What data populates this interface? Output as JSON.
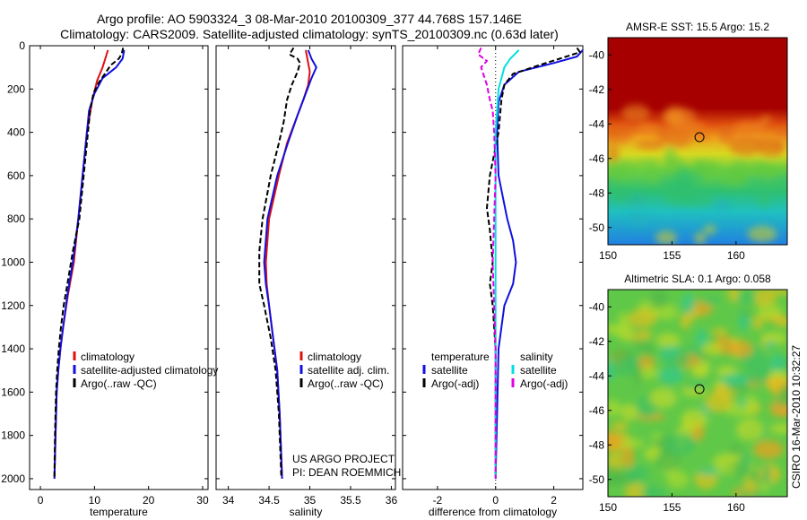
{
  "title_line1": "Argo profile: AO 5903324_3 08-Mar-2010 20100309_377 44.768S 157.146E",
  "title_line2": "Climatology: CARS2009. Satellite-adjusted climatology: synTS_20100309.nc (0.63d later)",
  "side_text": "CSIRO 16-Mar-2010 10:32:27",
  "colors": {
    "red": "#e01010",
    "blue": "#1010e0",
    "black": "#000000",
    "cyan": "#00e0e0",
    "magenta": "#e000e0"
  },
  "chart_data": [
    {
      "type": "line",
      "xlabel": "temperature",
      "xlim": [
        -2,
        31
      ],
      "ylim": [
        2050,
        0
      ],
      "y_reversed": true,
      "xticks": [
        0,
        10,
        20,
        30
      ],
      "yticks": [
        0,
        200,
        400,
        600,
        800,
        1000,
        1200,
        1400,
        1600,
        1800,
        2000
      ],
      "legend": [
        "climatology",
        "satellite-adjusted climatology",
        "Argo(..raw -QC)"
      ],
      "series": [
        {
          "name": "climatology",
          "color": "red",
          "dash": false,
          "points": [
            [
              12.5,
              20
            ],
            [
              12.0,
              60
            ],
            [
              11.5,
              100
            ],
            [
              10.5,
              160
            ],
            [
              9.6,
              250
            ],
            [
              8.6,
              400
            ],
            [
              7.8,
              600
            ],
            [
              7.0,
              800
            ],
            [
              6.2,
              1000
            ],
            [
              5.1,
              1150
            ],
            [
              4.2,
              1300
            ],
            [
              3.7,
              1400
            ],
            [
              3.3,
              1500
            ],
            [
              3.0,
              1600
            ],
            [
              2.8,
              1800
            ],
            [
              2.6,
              2000
            ]
          ]
        },
        {
          "name": "satellite-adjusted climatology",
          "color": "blue",
          "dash": false,
          "points": [
            [
              15.5,
              20
            ],
            [
              15.2,
              60
            ],
            [
              14.0,
              100
            ],
            [
              11.5,
              150
            ],
            [
              10.0,
              220
            ],
            [
              9.0,
              300
            ],
            [
              8.6,
              400
            ],
            [
              7.8,
              600
            ],
            [
              7.0,
              800
            ],
            [
              6.0,
              1000
            ],
            [
              5.0,
              1150
            ],
            [
              4.2,
              1300
            ],
            [
              3.7,
              1400
            ],
            [
              3.3,
              1500
            ],
            [
              3.0,
              1600
            ],
            [
              2.8,
              1800
            ],
            [
              2.6,
              2000
            ]
          ]
        },
        {
          "name": "Argo(..raw -QC)",
          "color": "black",
          "dash": true,
          "points": [
            [
              15.3,
              10
            ],
            [
              15.0,
              40
            ],
            [
              14.5,
              60
            ],
            [
              13.0,
              90
            ],
            [
              12.2,
              120
            ],
            [
              10.8,
              170
            ],
            [
              9.8,
              220
            ],
            [
              9.2,
              300
            ],
            [
              8.8,
              400
            ],
            [
              8.0,
              600
            ],
            [
              7.2,
              800
            ],
            [
              6.0,
              950
            ],
            [
              5.0,
              1100
            ],
            [
              4.3,
              1200
            ],
            [
              3.8,
              1300
            ],
            [
              3.4,
              1400
            ],
            [
              3.1,
              1500
            ],
            [
              2.9,
              1600
            ],
            [
              2.7,
              1800
            ],
            [
              2.6,
              1990
            ]
          ]
        }
      ]
    },
    {
      "type": "line",
      "xlabel": "salinity",
      "xlim": [
        33.85,
        36.05
      ],
      "ylim": [
        2050,
        0
      ],
      "y_reversed": true,
      "xticks": [
        34,
        34.5,
        35,
        35.5,
        36
      ],
      "legend": [
        "climatology",
        "satellite adj. clim.",
        "Argo(..raw -QC)"
      ],
      "annotation": [
        "US ARGO PROJECT",
        "PI: DEAN ROEMMICH"
      ],
      "series": [
        {
          "name": "climatology",
          "color": "red",
          "dash": false,
          "points": [
            [
              34.95,
              20
            ],
            [
              34.98,
              80
            ],
            [
              35.0,
              120
            ],
            [
              34.98,
              180
            ],
            [
              34.92,
              250
            ],
            [
              34.82,
              350
            ],
            [
              34.72,
              450
            ],
            [
              34.62,
              600
            ],
            [
              34.5,
              800
            ],
            [
              34.46,
              1000
            ],
            [
              34.47,
              1100
            ],
            [
              34.5,
              1200
            ],
            [
              34.55,
              1350
            ],
            [
              34.6,
              1500
            ],
            [
              34.63,
              1700
            ],
            [
              34.66,
              2000
            ]
          ]
        },
        {
          "name": "satellite adj. clim.",
          "color": "blue",
          "dash": false,
          "points": [
            [
              34.98,
              20
            ],
            [
              35.02,
              60
            ],
            [
              35.08,
              100
            ],
            [
              35.02,
              150
            ],
            [
              34.95,
              220
            ],
            [
              34.85,
              320
            ],
            [
              34.73,
              450
            ],
            [
              34.6,
              600
            ],
            [
              34.48,
              800
            ],
            [
              34.44,
              1000
            ],
            [
              34.46,
              1100
            ],
            [
              34.5,
              1200
            ],
            [
              34.55,
              1350
            ],
            [
              34.6,
              1500
            ],
            [
              34.63,
              1700
            ],
            [
              34.66,
              2000
            ]
          ]
        },
        {
          "name": "Argo(..raw -QC)",
          "color": "black",
          "dash": true,
          "points": [
            [
              34.8,
              10
            ],
            [
              34.75,
              40
            ],
            [
              34.85,
              60
            ],
            [
              34.88,
              80
            ],
            [
              34.85,
              120
            ],
            [
              34.78,
              180
            ],
            [
              34.72,
              250
            ],
            [
              34.68,
              350
            ],
            [
              34.62,
              450
            ],
            [
              34.52,
              600
            ],
            [
              34.42,
              800
            ],
            [
              34.38,
              950
            ],
            [
              34.38,
              1100
            ],
            [
              34.44,
              1200
            ],
            [
              34.52,
              1350
            ],
            [
              34.58,
              1500
            ],
            [
              34.62,
              1700
            ],
            [
              34.65,
              1990
            ]
          ]
        }
      ]
    },
    {
      "type": "line",
      "xlabel": "difference from climatology",
      "xlim": [
        -3.2,
        3.0
      ],
      "ylim": [
        2050,
        0
      ],
      "y_reversed": true,
      "xticks": [
        -2,
        0,
        2
      ],
      "legend": [
        "temperature",
        "satellite",
        "Argo(-adj)",
        "salinity",
        "satellite",
        "Argo(-adj)"
      ],
      "series": [
        {
          "name": "temperature satellite",
          "color": "blue",
          "dash": false,
          "points": [
            [
              3.0,
              20
            ],
            [
              2.8,
              50
            ],
            [
              2.0,
              80
            ],
            [
              0.8,
              120
            ],
            [
              0.3,
              180
            ],
            [
              0.1,
              260
            ],
            [
              0.05,
              400
            ],
            [
              0.1,
              600
            ],
            [
              0.4,
              800
            ],
            [
              0.6,
              900
            ],
            [
              0.7,
              1000
            ],
            [
              0.6,
              1100
            ],
            [
              0.3,
              1200
            ],
            [
              0.1,
              1400
            ],
            [
              0.0,
              2000
            ]
          ]
        },
        {
          "name": "temperature Argo(-adj)",
          "color": "black",
          "dash": true,
          "points": [
            [
              2.8,
              10
            ],
            [
              2.9,
              30
            ],
            [
              2.2,
              60
            ],
            [
              1.5,
              90
            ],
            [
              0.6,
              130
            ],
            [
              0.3,
              180
            ],
            [
              0.2,
              250
            ],
            [
              0.1,
              400
            ],
            [
              -0.2,
              600
            ],
            [
              -0.3,
              750
            ],
            [
              -0.2,
              850
            ],
            [
              -0.1,
              1000
            ],
            [
              -0.2,
              1100
            ],
            [
              -0.1,
              1200
            ],
            [
              0.0,
              1400
            ],
            [
              0.0,
              2000
            ]
          ]
        },
        {
          "name": "salinity satellite",
          "color": "cyan",
          "dash": false,
          "points": [
            [
              0.8,
              20
            ],
            [
              0.5,
              60
            ],
            [
              0.3,
              100
            ],
            [
              0.1,
              200
            ],
            [
              0.05,
              300
            ],
            [
              0.0,
              400
            ],
            [
              0.0,
              600
            ],
            [
              0.0,
              1000
            ],
            [
              0.0,
              2000
            ]
          ]
        },
        {
          "name": "salinity Argo(-adj)",
          "color": "magenta",
          "dash": true,
          "points": [
            [
              -0.5,
              10
            ],
            [
              -0.6,
              40
            ],
            [
              -0.3,
              70
            ],
            [
              -0.5,
              100
            ],
            [
              -0.3,
              180
            ],
            [
              -0.2,
              250
            ],
            [
              -0.1,
              300
            ],
            [
              -0.05,
              400
            ],
            [
              0.0,
              600
            ],
            [
              -0.05,
              800
            ],
            [
              -0.1,
              1000
            ],
            [
              -0.05,
              1200
            ],
            [
              0.0,
              1400
            ],
            [
              0.0,
              2000
            ]
          ]
        }
      ]
    },
    {
      "type": "heatmap",
      "title": "AMSR-E SST: 15.5 Argo: 15.2",
      "xlim": [
        150,
        164
      ],
      "ylim": [
        -51,
        -39
      ],
      "xticks": [
        150,
        155,
        160
      ],
      "yticks": [
        -40,
        -42,
        -44,
        -46,
        -48,
        -50
      ],
      "marker": {
        "lon": 157.146,
        "lat": -44.768
      }
    },
    {
      "type": "heatmap",
      "title": "Altimetric SLA: 0.1 Argo: 0.058",
      "xlim": [
        150,
        164
      ],
      "ylim": [
        -51,
        -39
      ],
      "xticks": [
        150,
        155,
        160
      ],
      "yticks": [
        -40,
        -42,
        -44,
        -46,
        -48,
        -50
      ],
      "marker": {
        "lon": 157.146,
        "lat": -44.768
      }
    }
  ]
}
